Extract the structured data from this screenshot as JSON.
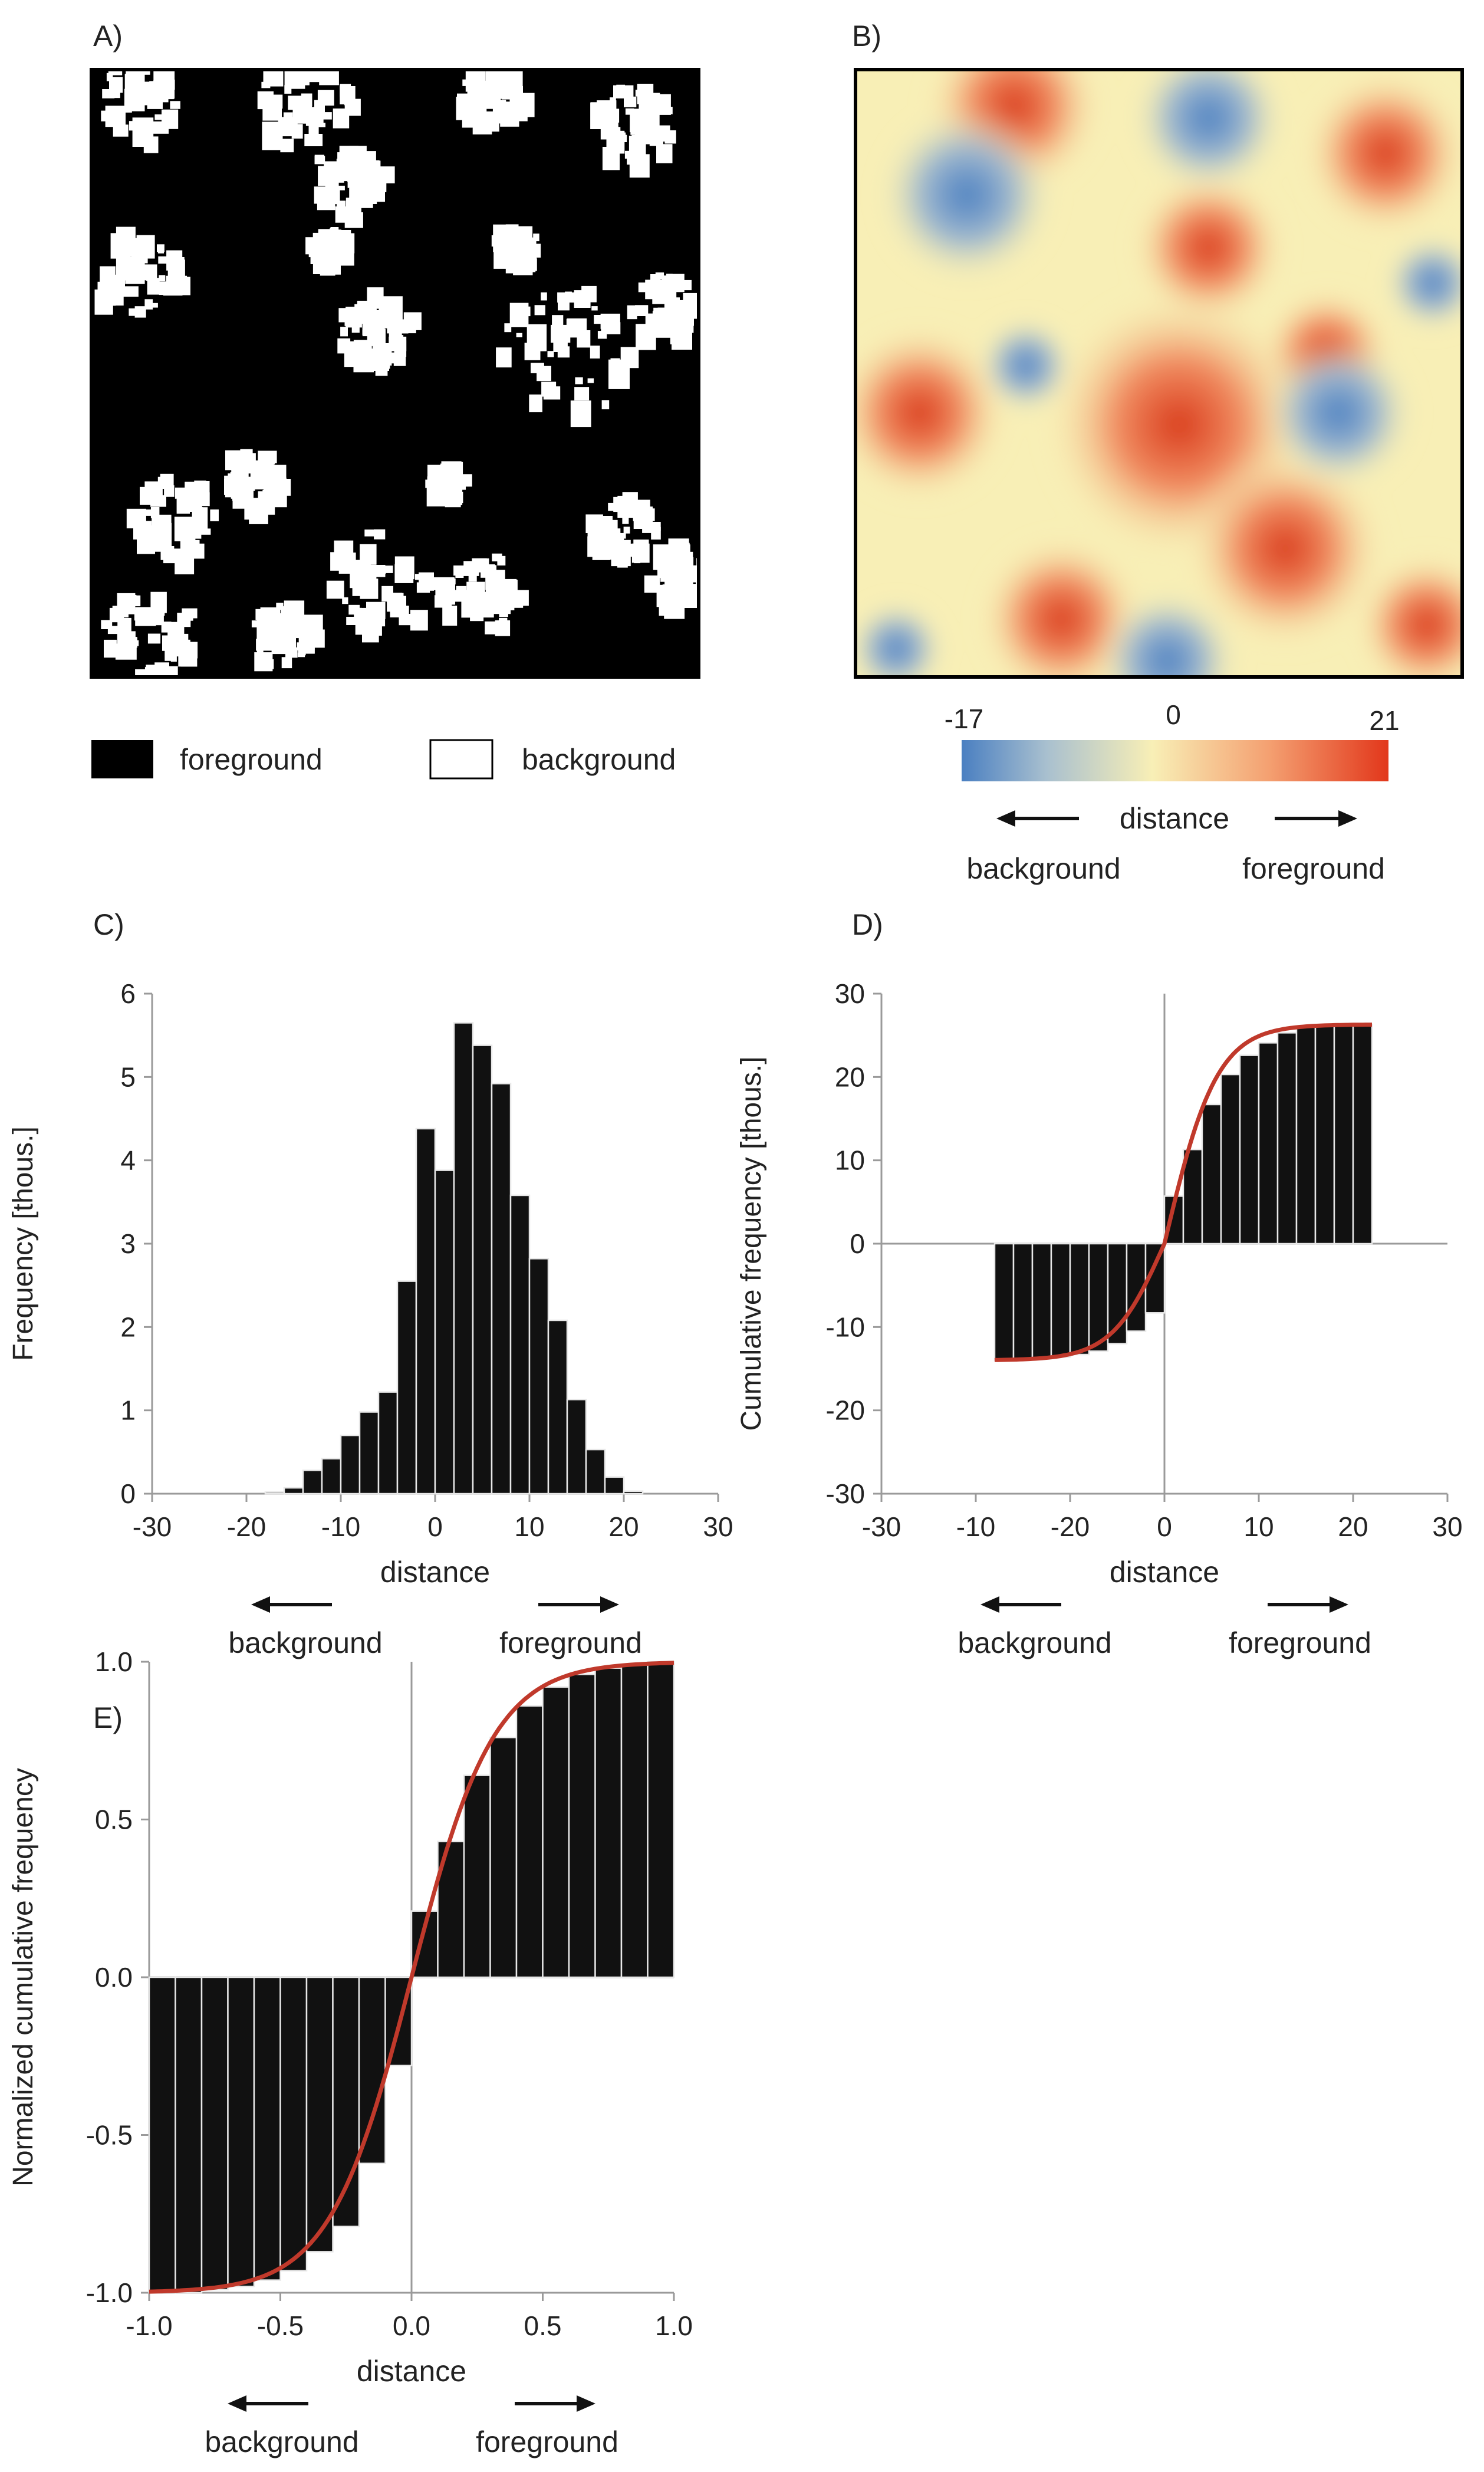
{
  "panels": {
    "A": {
      "label": "A)",
      "legend": [
        {
          "label": "foreground",
          "color": "#000000"
        },
        {
          "label": "background",
          "color": "#ffffff"
        }
      ]
    },
    "B": {
      "label": "B)",
      "colorbar": {
        "min_label": "-17",
        "mid_label": "0",
        "max_label": "21",
        "min": -17,
        "mid": 0,
        "max": 21,
        "colors": [
          "#4a7fc1",
          "#a9c0cf",
          "#f8efb6",
          "#f4a071",
          "#e2371b"
        ]
      },
      "direction": {
        "center": "distance",
        "left": "background",
        "right": "foreground"
      }
    }
  },
  "chart_data": [
    {
      "panel": "C",
      "label": "C)",
      "type": "bar",
      "xlabel": "distance",
      "ylabel": "Frequency [thous.]",
      "xlim": [
        -30,
        30
      ],
      "ylim": [
        0,
        6
      ],
      "xticks": [
        "-30",
        "-20",
        "-10",
        "0",
        "10",
        "20",
        "30"
      ],
      "yticks": [
        "0",
        "1",
        "2",
        "3",
        "4",
        "5",
        "6"
      ],
      "bin_width": 2,
      "x": [
        -17,
        -15,
        -13,
        -11,
        -9,
        -7,
        -5,
        -3,
        -1,
        1,
        3,
        5,
        7,
        9,
        11,
        13,
        15,
        17,
        19,
        21
      ],
      "values": [
        0.02,
        0.07,
        0.28,
        0.42,
        0.7,
        0.98,
        1.22,
        2.55,
        4.38,
        3.88,
        5.65,
        5.38,
        4.92,
        3.58,
        2.82,
        2.08,
        1.13,
        0.53,
        0.2,
        0.03
      ],
      "direction": {
        "center": "distance",
        "left": "background",
        "right": "foreground"
      }
    },
    {
      "panel": "D",
      "label": "D)",
      "type": "bar",
      "xlabel": "distance",
      "ylabel": "Cumulative frequency [thous.]",
      "xlim": [
        -30,
        30
      ],
      "ylim": [
        -30,
        30
      ],
      "xticks": [
        "-30",
        "-10",
        "-20",
        "0",
        "10",
        "20",
        "30"
      ],
      "yticks": [
        "-30",
        "-20",
        "-10",
        "0",
        "10",
        "20",
        "30"
      ],
      "bin_width": 2,
      "x": [
        -17,
        -15,
        -13,
        -11,
        -9,
        -7,
        -5,
        -3,
        -1,
        1,
        3,
        5,
        7,
        9,
        11,
        13,
        15,
        17,
        19,
        21
      ],
      "values": [
        -14.0,
        -13.9,
        -13.8,
        -13.6,
        -13.3,
        -12.9,
        -12.0,
        -10.5,
        -8.3,
        5.7,
        11.3,
        16.7,
        20.3,
        22.6,
        24.1,
        25.3,
        26.0,
        26.2,
        26.3,
        26.3
      ],
      "fit_color": "#c0392b",
      "direction": {
        "center": "distance",
        "left": "background",
        "right": "foreground"
      }
    },
    {
      "panel": "E",
      "label": "E)",
      "type": "bar",
      "xlabel": "distance",
      "ylabel": "Normalized cumulative frequency",
      "xlim": [
        -1.0,
        1.0
      ],
      "ylim": [
        -1.0,
        1.0
      ],
      "xticks": [
        "-1.0",
        "-0.5",
        "0.0",
        "0.5",
        "1.0"
      ],
      "yticks": [
        "-1.0",
        "-0.5",
        "0.0",
        "0.5",
        "1.0"
      ],
      "bin_width": 0.1,
      "x": [
        -0.95,
        -0.85,
        -0.75,
        -0.65,
        -0.55,
        -0.45,
        -0.35,
        -0.25,
        -0.15,
        -0.05,
        0.05,
        0.15,
        0.25,
        0.35,
        0.45,
        0.55,
        0.65,
        0.75,
        0.85,
        0.95
      ],
      "values": [
        -1.0,
        -1.0,
        -0.99,
        -0.98,
        -0.96,
        -0.93,
        -0.87,
        -0.79,
        -0.59,
        -0.28,
        0.21,
        0.43,
        0.64,
        0.76,
        0.86,
        0.92,
        0.96,
        0.98,
        0.99,
        1.0
      ],
      "fit_color": "#c0392b",
      "direction": {
        "center": "distance",
        "left": "background",
        "right": "foreground"
      }
    }
  ]
}
